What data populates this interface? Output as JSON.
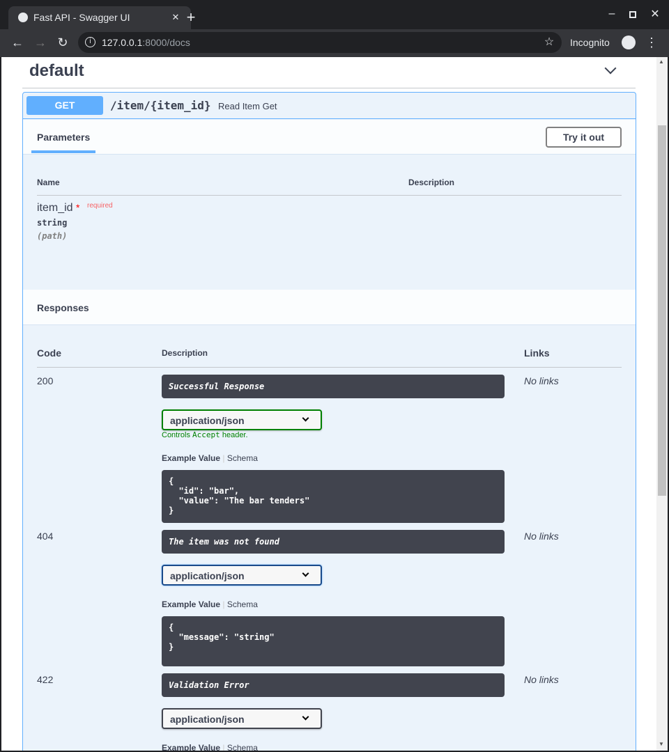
{
  "browser": {
    "tab_title": "Fast API - Swagger UI",
    "url_host": "127.0.0.1",
    "url_rest": ":8000/docs",
    "incognito": "Incognito"
  },
  "section": {
    "title": "default"
  },
  "operation": {
    "method": "GET",
    "method_color": "#61affe",
    "path": "/item/{item_id}",
    "summary": "Read Item Get",
    "params_tab": "Parameters",
    "try_button": "Try it out",
    "param_headers": {
      "name": "Name",
      "description": "Description"
    },
    "param": {
      "name": "item_id",
      "star": "*",
      "required": "required",
      "type": "string",
      "in": "(path)"
    },
    "responses_title": "Responses",
    "resp_headers": {
      "code": "Code",
      "description": "Description",
      "links": "Links"
    },
    "responses": [
      {
        "code": "200",
        "description": "Successful Response",
        "media": "application/json",
        "controls": "Controls",
        "controls_code": "Accept",
        "controls_tail": "header.",
        "example_label": "Example Value",
        "schema_label": "Schema",
        "example": "{\n  \"id\": \"bar\",\n  \"value\": \"The bar tenders\"\n}",
        "links": "No links",
        "select_border": "#008000"
      },
      {
        "code": "404",
        "description": "The item was not found",
        "media": "application/json",
        "example_label": "Example Value",
        "schema_label": "Schema",
        "example": "{\n  \"message\": \"string\"\n}",
        "links": "No links",
        "select_border": "#1a4a8a"
      },
      {
        "code": "422",
        "description": "Validation Error",
        "media": "application/json",
        "example_label": "Example Value",
        "schema_label": "Schema",
        "links": "No links",
        "select_border": "#41444e"
      }
    ]
  }
}
